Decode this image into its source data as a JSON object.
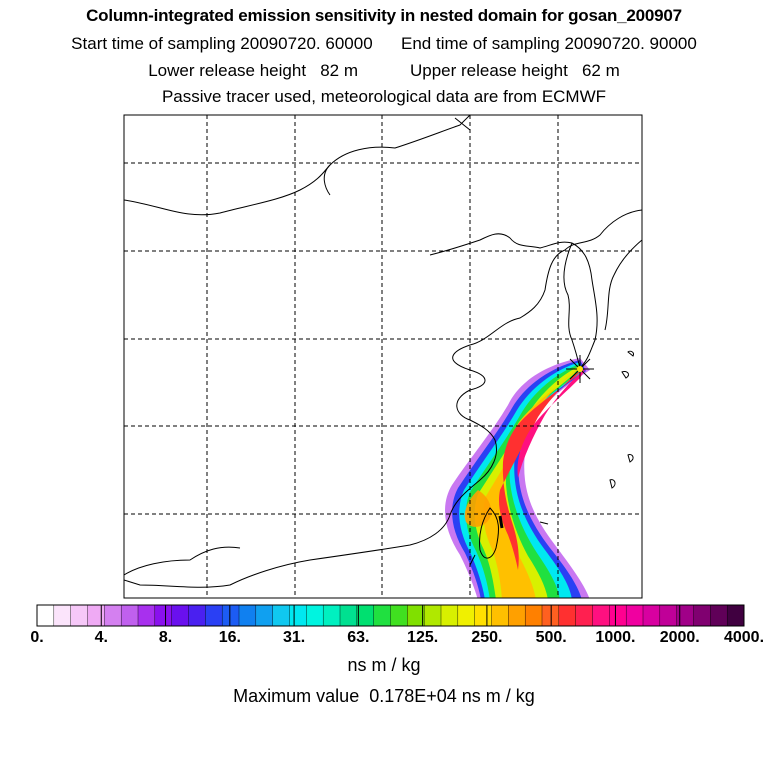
{
  "header": {
    "title": "Column-integrated emission sensitivity in nested domain for gosan_200907",
    "start_label": "Start time of sampling 20090720. 60000",
    "end_label": "End time of sampling 20090720. 90000",
    "lower_label": "Lower release height   82 m",
    "upper_label": "Upper release height   62 m",
    "tracer_label": "Passive tracer used, meteorological data are from ECMWF"
  },
  "map": {
    "description_marker": "release site",
    "colors": {
      "frame": "#000000",
      "grid": "#000000",
      "coast": "#000000"
    }
  },
  "colorbar": {
    "ticks": [
      "0.",
      "4.",
      "8.",
      "16.",
      "31.",
      "63.",
      "125.",
      "250.",
      "500.",
      "1000.",
      "2000.",
      "4000."
    ],
    "colors": [
      "#ffffff",
      "#fbe4fb",
      "#f6c8f8",
      "#efaaf4",
      "#d480f0",
      "#c060ee",
      "#a830ee",
      "#8a10ee",
      "#6a10ee",
      "#4a20f0",
      "#2a40f4",
      "#1c5cf4",
      "#1080f0",
      "#10a0f0",
      "#10c8f0",
      "#00e8f0",
      "#00f4e0",
      "#00f0c0",
      "#00e090",
      "#00e070",
      "#20e040",
      "#40e020",
      "#80e000",
      "#b0e800",
      "#d8f000",
      "#f0f000",
      "#ffe000",
      "#ffc000",
      "#ffa000",
      "#ff8000",
      "#ff6020",
      "#ff3030",
      "#ff2050",
      "#ff1080",
      "#ff0090",
      "#f000a0",
      "#d800a0",
      "#c00098",
      "#a00088",
      "#800070",
      "#600058",
      "#400040"
    ],
    "units": "ns m / kg",
    "max_value": "Maximum value  0.178E+04 ns m / kg"
  }
}
